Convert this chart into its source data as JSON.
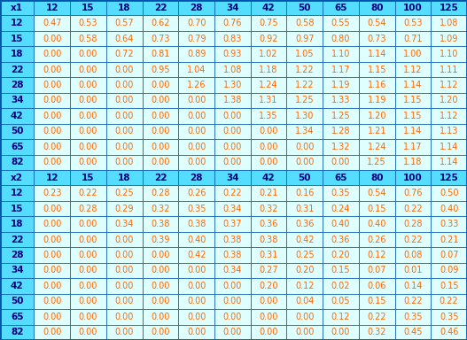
{
  "header1": [
    "x1",
    "12",
    "15",
    "18",
    "22",
    "28",
    "34",
    "42",
    "50",
    "65",
    "80",
    "100",
    "125"
  ],
  "rows1": [
    [
      "12",
      "0.47",
      "0.53",
      "0.57",
      "0.62",
      "0.70",
      "0.76",
      "0.75",
      "0.58",
      "0.55",
      "0.54",
      "0.53",
      "1.08"
    ],
    [
      "15",
      "0.00",
      "0.58",
      "0.64",
      "0.73",
      "0.79",
      "0.83",
      "0.92",
      "0.97",
      "0.80",
      "0.73",
      "0.71",
      "1.09"
    ],
    [
      "18",
      "0.00",
      "0.00",
      "0.72",
      "0.81",
      "0.89",
      "0.93",
      "1.02",
      "1.05",
      "1.10",
      "1.14",
      "1.00",
      "1.10"
    ],
    [
      "22",
      "0.00",
      "0.00",
      "0.00",
      "0.95",
      "1.04",
      "1.08",
      "1.18",
      "1.22",
      "1.17",
      "1.15",
      "1.12",
      "1.11"
    ],
    [
      "28",
      "0.00",
      "0.00",
      "0.00",
      "0.00",
      "1.26",
      "1.30",
      "1.24",
      "1.22",
      "1.19",
      "1.16",
      "1.14",
      "1.12"
    ],
    [
      "34",
      "0.00",
      "0.00",
      "0.00",
      "0.00",
      "0.00",
      "1.38",
      "1.31",
      "1.25",
      "1.33",
      "1.19",
      "1.15",
      "1.20"
    ],
    [
      "42",
      "0.00",
      "0.00",
      "0.00",
      "0.00",
      "0.00",
      "0.00",
      "1.35",
      "1.30",
      "1.25",
      "1.20",
      "1.15",
      "1.12"
    ],
    [
      "50",
      "0.00",
      "0.00",
      "0.00",
      "0.00",
      "0.00",
      "0.00",
      "0.00",
      "1.34",
      "1.28",
      "1.21",
      "1.14",
      "1.13"
    ],
    [
      "65",
      "0.00",
      "0.00",
      "0.00",
      "0.00",
      "0.00",
      "0.00",
      "0.00",
      "0.00",
      "1.32",
      "1.24",
      "1.17",
      "1.14"
    ],
    [
      "82",
      "0.00",
      "0.00",
      "0.00",
      "0.00",
      "0.00",
      "0.00",
      "0.00",
      "0.00",
      "0.00",
      "1.25",
      "1.18",
      "1.14"
    ]
  ],
  "header2": [
    "x2",
    "12",
    "15",
    "18",
    "22",
    "28",
    "34",
    "42",
    "50",
    "65",
    "80",
    "100",
    "125"
  ],
  "rows2": [
    [
      "12",
      "0.23",
      "0.22",
      "0.25",
      "0.28",
      "0.26",
      "0.22",
      "0.21",
      "0.16",
      "0.35",
      "0.54",
      "0.76",
      "0.50"
    ],
    [
      "15",
      "0.00",
      "0.28",
      "0.29",
      "0.32",
      "0.35",
      "0.34",
      "0.32",
      "0.31",
      "0.24",
      "0.15",
      "0.22",
      "0.40"
    ],
    [
      "18",
      "0.00",
      "0.00",
      "0.34",
      "0.38",
      "0.38",
      "0.37",
      "0.36",
      "0.36",
      "0.40",
      "0.40",
      "0.28",
      "0.33"
    ],
    [
      "22",
      "0.00",
      "0.00",
      "0.00",
      "0.39",
      "0.40",
      "0.38",
      "0.38",
      "0.42",
      "0.36",
      "0.26",
      "0.22",
      "0.21"
    ],
    [
      "28",
      "0.00",
      "0.00",
      "0.00",
      "0.00",
      "0.42",
      "0.38",
      "0.31",
      "0.25",
      "0.20",
      "0.12",
      "0.08",
      "0.07"
    ],
    [
      "34",
      "0.00",
      "0.00",
      "0.00",
      "0.00",
      "0.00",
      "0.34",
      "0.27",
      "0.20",
      "0.15",
      "0.07",
      "0.01",
      "0.09"
    ],
    [
      "42",
      "0.00",
      "0.00",
      "0.00",
      "0.00",
      "0.00",
      "0.00",
      "0.20",
      "0.12",
      "0.02",
      "0.06",
      "0.14",
      "0.15"
    ],
    [
      "50",
      "0.00",
      "0.00",
      "0.00",
      "0.00",
      "0.00",
      "0.00",
      "0.00",
      "0.04",
      "0.05",
      "0.15",
      "0.22",
      "0.22"
    ],
    [
      "65",
      "0.00",
      "0.00",
      "0.00",
      "0.00",
      "0.00",
      "0.00",
      "0.00",
      "0.00",
      "0.12",
      "0.22",
      "0.35",
      "0.35"
    ],
    [
      "82",
      "0.00",
      "0.00",
      "0.00",
      "0.00",
      "0.00",
      "0.00",
      "0.00",
      "0.00",
      "0.00",
      "0.32",
      "0.45",
      "0.46"
    ]
  ],
  "header_bg": "#55DDFF",
  "data_bg": "#DFFFFF",
  "header_text_color": "#00007F",
  "row_label_text_color": "#00007F",
  "data_text_color": "#FF6600",
  "border_color": "#0055AA",
  "col_props": [
    0.068,
    0.072,
    0.072,
    0.072,
    0.072,
    0.072,
    0.072,
    0.072,
    0.072,
    0.072,
    0.072,
    0.072,
    0.072
  ],
  "fontsize": 7.0,
  "header_fontsize": 7.5
}
